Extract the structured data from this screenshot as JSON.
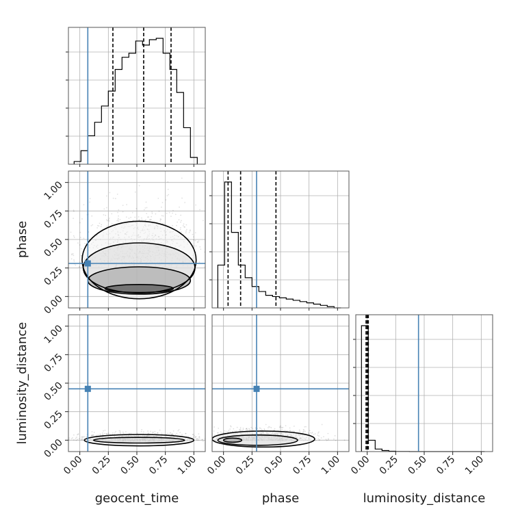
{
  "chart_data": {
    "type": "corner",
    "parameters": [
      "geocent_time",
      "phase",
      "luminosity_distance"
    ],
    "axis_range": [
      -0.1,
      1.1
    ],
    "tick_values": [
      0,
      0.25,
      0.5,
      0.75,
      1.0
    ],
    "tick_labels": [
      "0.00",
      "0.25",
      "0.50",
      "0.75",
      "1.00"
    ],
    "grid": true,
    "truth_color": "#4682b4",
    "truths": {
      "geocent_time": 0.07,
      "phase": 0.29,
      "luminosity_distance": 0.45
    },
    "quantiles": {
      "geocent_time": [
        0.29,
        0.56,
        0.8
      ],
      "phase": [
        0.04,
        0.15,
        0.46
      ],
      "luminosity_distance": [
        -0.01,
        0.0,
        0.01
      ]
    },
    "histograms": [
      {
        "parameter": "geocent_time",
        "bin_edges": [
          -0.05,
          0.01,
          0.07,
          0.13,
          0.19,
          0.25,
          0.31,
          0.37,
          0.43,
          0.49,
          0.55,
          0.61,
          0.67,
          0.73,
          0.79,
          0.85,
          0.91,
          0.97,
          1.03
        ],
        "counts": [
          2,
          10,
          21,
          31,
          43,
          54,
          70,
          79,
          82,
          91,
          88,
          92,
          93,
          82,
          70,
          53,
          27,
          5
        ]
      },
      {
        "parameter": "phase",
        "bin_edges": [
          -0.05,
          0.01,
          0.07,
          0.13,
          0.19,
          0.25,
          0.31,
          0.37,
          0.43,
          0.49,
          0.55,
          0.61,
          0.67,
          0.73,
          0.79,
          0.85,
          0.91,
          0.97,
          1.03
        ],
        "counts": [
          34,
          100,
          60,
          34,
          24,
          17,
          13,
          10,
          9,
          8,
          7,
          6,
          5,
          4,
          3,
          2,
          1,
          0
        ]
      },
      {
        "parameter": "luminosity_distance",
        "bin_edges": [
          -0.05,
          0.01,
          0.07,
          0.13,
          0.19,
          0.25,
          0.31,
          0.37,
          0.43,
          0.49,
          0.55,
          0.61,
          0.67,
          0.73,
          0.79,
          0.85,
          0.91,
          0.97,
          1.03
        ],
        "counts": [
          100,
          9,
          2,
          0.8,
          0.3,
          0.1,
          0.05,
          0,
          0,
          0,
          0,
          0,
          0,
          0,
          0,
          0,
          0,
          0
        ]
      }
    ],
    "contours": [
      {
        "x": "geocent_time",
        "y": "phase",
        "levels": [
          {
            "cx": 0.52,
            "cy": 0.07,
            "rx": 0.3,
            "ry": 0.035
          },
          {
            "cx": 0.52,
            "cy": 0.14,
            "rx": 0.45,
            "ry": 0.12
          },
          {
            "cx": 0.52,
            "cy": 0.25,
            "rx": 0.49,
            "ry": 0.22
          },
          {
            "cx": 0.52,
            "cy": 0.32,
            "rx": 0.5,
            "ry": 0.34
          }
        ]
      },
      {
        "x": "phase",
        "y": "luminosity_distance",
        "levels": [
          {
            "cx": 0.08,
            "cy": 0.0,
            "rx": 0.08,
            "ry": 0.018
          },
          {
            "cx": 0.3,
            "cy": 0.0,
            "rx": 0.35,
            "ry": 0.045
          },
          {
            "cx": 0.35,
            "cy": 0.01,
            "rx": 0.45,
            "ry": 0.07
          }
        ]
      },
      {
        "x": "geocent_time",
        "y": "luminosity_distance",
        "levels": [
          {
            "cx": 0.52,
            "cy": 0.0,
            "rx": 0.4,
            "ry": 0.025
          },
          {
            "cx": 0.52,
            "cy": 0.0,
            "rx": 0.48,
            "ry": 0.05
          }
        ]
      }
    ]
  }
}
